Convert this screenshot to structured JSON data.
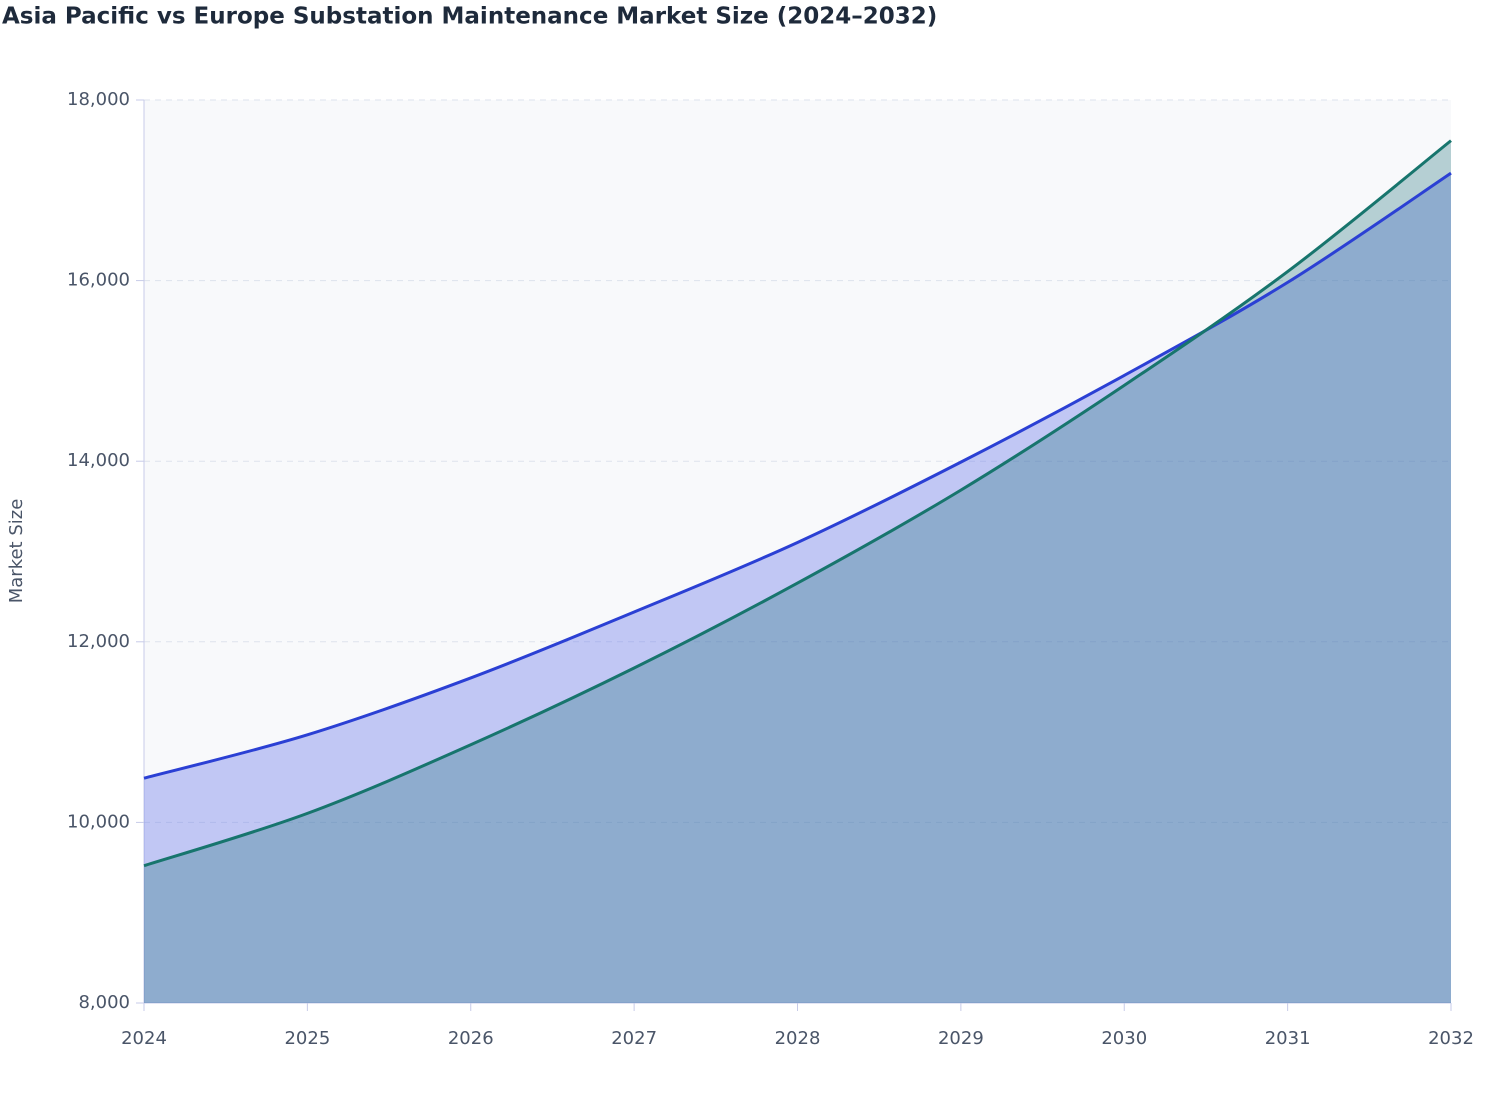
{
  "chart_data": {
    "type": "area",
    "title": "Asia Pacific vs Europe Substation Maintenance Market Size (2024–2032)",
    "y_label": "Market Size",
    "categories": [
      "2024",
      "2025",
      "2026",
      "2027",
      "2028",
      "2029",
      "2030",
      "2031",
      "2032"
    ],
    "series": [
      {
        "color": "#2b40d4",
        "fill": "rgba(110,125,235,0.4)",
        "values": [
          10490,
          10970,
          11600,
          12330,
          13100,
          13990,
          14950,
          15980,
          17190
        ]
      },
      {
        "color": "#17756d",
        "fill": "rgba(26,110,120,0.3)",
        "values": [
          9520,
          10100,
          10860,
          11710,
          12650,
          13680,
          14840,
          16100,
          17550
        ]
      }
    ],
    "ylim": [
      8000,
      18000
    ],
    "yticks": [
      {
        "value": 8000,
        "label": "8,000"
      },
      {
        "value": 10000,
        "label": "10,000"
      },
      {
        "value": 12000,
        "label": "12,000"
      },
      {
        "value": 14000,
        "label": "14,000"
      },
      {
        "value": 16000,
        "label": "16,000"
      },
      {
        "value": 18000,
        "label": "18,000"
      }
    ],
    "grid": true
  }
}
